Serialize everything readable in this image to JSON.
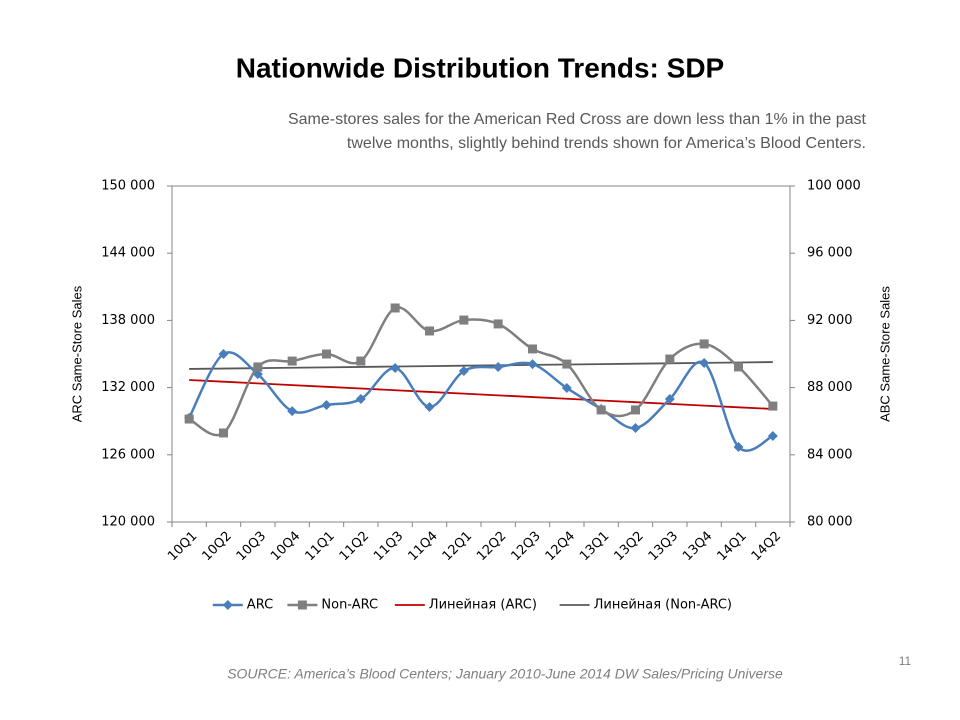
{
  "chart_data": {
    "type": "line",
    "title": "Nationwide Distribution Trends: SDP",
    "subtitle": [
      "Same-stores sales for the American Red Cross are down less than 1% in the past",
      "twelve months, slightly behind trends shown for America’s Blood Centers."
    ],
    "source": "SOURCE: America’s Blood Centers; January 2010-June 2014 DW Sales/Pricing Universe",
    "page_number": "11",
    "ylabel": "ARC Same-Store Sales",
    "y2label": "ABC Same-Store Sales",
    "categories": [
      "10Q1",
      "10Q2",
      "10Q3",
      "10Q4",
      "11Q1",
      "11Q2",
      "11Q3",
      "11Q4",
      "12Q1",
      "12Q2",
      "12Q3",
      "12Q4",
      "13Q1",
      "13Q2",
      "13Q3",
      "13Q4",
      "14Q1",
      "14Q2"
    ],
    "ylim": [
      120000,
      150000
    ],
    "yticks": [
      {
        "value": 120000,
        "label": "120 000"
      },
      {
        "value": 126000,
        "label": "126 000"
      },
      {
        "value": 132000,
        "label": "132 000"
      },
      {
        "value": 138000,
        "label": "138 000"
      },
      {
        "value": 144000,
        "label": "144 000"
      },
      {
        "value": 150000,
        "label": "150 000"
      }
    ],
    "y2lim": [
      80000,
      100000
    ],
    "y2ticks": [
      {
        "value": 80000,
        "label": "80 000"
      },
      {
        "value": 84000,
        "label": "84 000"
      },
      {
        "value": 88000,
        "label": "88 000"
      },
      {
        "value": 92000,
        "label": "92 000"
      },
      {
        "value": 96000,
        "label": "96 000"
      },
      {
        "value": 100000,
        "label": "100 000"
      }
    ],
    "legend": "bottom",
    "series": [
      {
        "name": "ARC",
        "color": "#4a7ebb",
        "marker": "diamond",
        "smooth": true,
        "values": [
          129300,
          135000,
          133200,
          129900,
          130450,
          130980,
          133750,
          130270,
          133480,
          133840,
          134100,
          131960,
          130090,
          128390,
          130980,
          134200,
          126700,
          127680
        ]
      },
      {
        "name": "Non-ARC",
        "color": "#7f7f7f",
        "marker": "square",
        "smooth": true,
        "axis": "y2",
        "values": [
          86130,
          85300,
          89230,
          89580,
          90000,
          89580,
          92740,
          91370,
          92020,
          91790,
          90300,
          89400,
          86670,
          86670,
          89700,
          90600,
          89230,
          86900
        ]
      },
      {
        "name": "Линейная (ARC)",
        "color": "#c00000",
        "values": [
          132680,
          132528,
          132375,
          132223,
          132070,
          131918,
          131765,
          131613,
          131461,
          131308,
          131156,
          131003,
          130851,
          130698,
          130546,
          130394,
          130241,
          130090
        ]
      },
      {
        "name": "Линейная (Non-ARC)",
        "color": "#595959",
        "axis": "y2",
        "values": [
          89110,
          89134,
          89158,
          89182,
          89206,
          89230,
          89254,
          89279,
          89303,
          89327,
          89351,
          89375,
          89399,
          89423,
          89447,
          89471,
          89496,
          89520
        ]
      }
    ]
  }
}
